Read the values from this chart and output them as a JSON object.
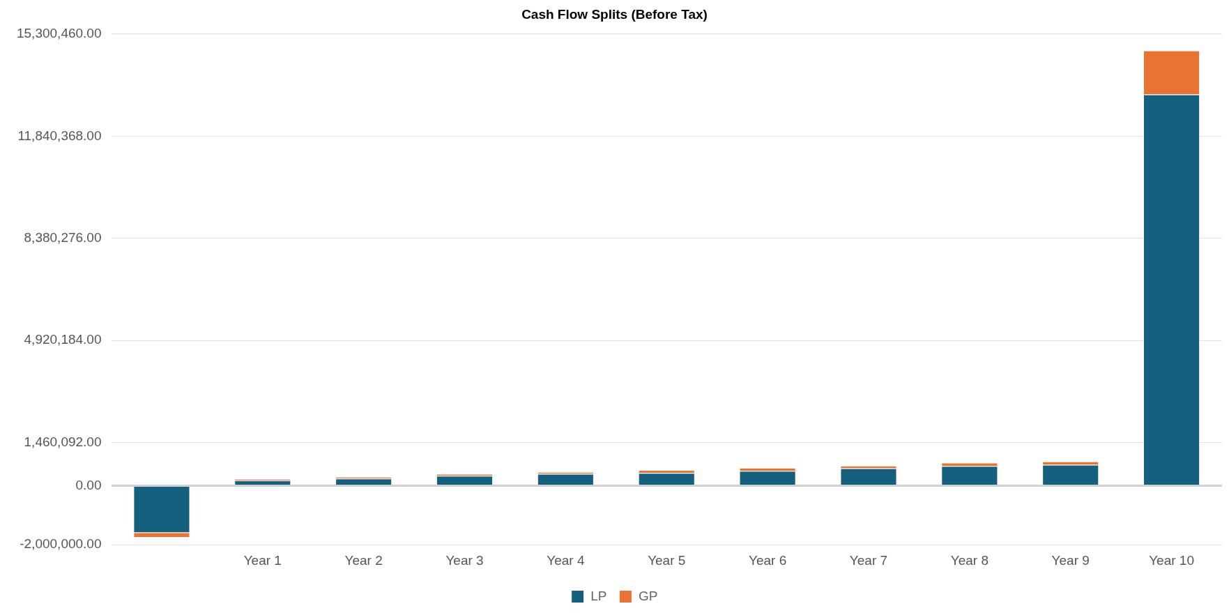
{
  "chart_data": {
    "type": "bar",
    "title": "Cash Flow Splits (Before Tax)",
    "stacked": true,
    "categories": [
      null,
      "Year 1",
      "Year 2",
      "Year 3",
      "Year 4",
      "Year 5",
      "Year 6",
      "Year 7",
      "Year 8",
      "Year 9",
      "Year 10"
    ],
    "series": [
      {
        "name": "LP",
        "color": "#16607f",
        "values": [
          -1600000,
          180000,
          240000,
          340000,
          400000,
          430000,
          500000,
          590000,
          670000,
          710000,
          13250000
        ]
      },
      {
        "name": "GP",
        "color": "#e87333",
        "values": [
          -160000,
          50000,
          60000,
          60000,
          70000,
          100000,
          110000,
          90000,
          110000,
          110000,
          1490000
        ]
      }
    ],
    "ylim": [
      -2000000,
      15300460
    ],
    "yticks": [
      {
        "value": -2000000,
        "label": "-2,000,000.00"
      },
      {
        "value": 0,
        "label": "0.00"
      },
      {
        "value": 1460092,
        "label": "1,460,092.00"
      },
      {
        "value": 4920184,
        "label": "4,920,184.00"
      },
      {
        "value": 8380276,
        "label": "8,380,276.00"
      },
      {
        "value": 11840368,
        "label": "11,840,368.00"
      },
      {
        "value": 15300460,
        "label": "15,300,460.00"
      }
    ],
    "grid": "y",
    "legend": "bottom"
  }
}
